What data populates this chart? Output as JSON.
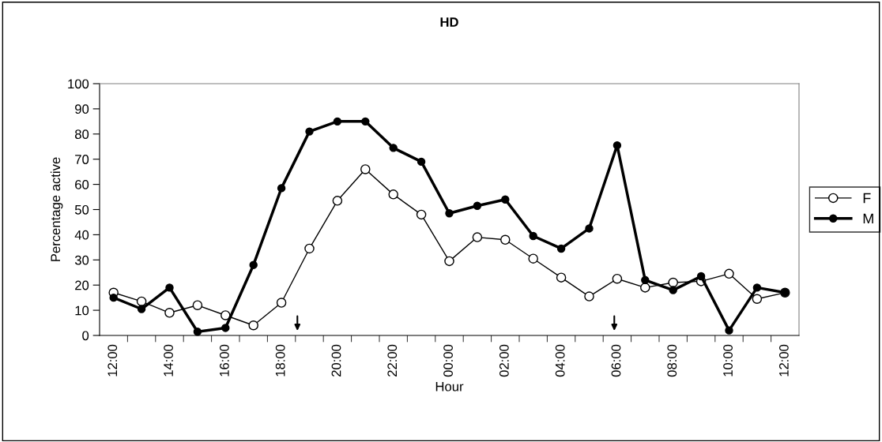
{
  "chart_data": {
    "type": "line",
    "title": "HD",
    "xlabel": "Hour",
    "ylabel": "Percentage active",
    "categories": [
      "12:00",
      null,
      "14:00",
      null,
      "16:00",
      null,
      "18:00",
      null,
      "20:00",
      null,
      "22:00",
      null,
      "00:00",
      null,
      "02:00",
      null,
      "04:00",
      null,
      "06:00",
      null,
      "08:00",
      null,
      "10:00",
      null,
      "12:00"
    ],
    "series": [
      {
        "name": "F",
        "color": "#000000",
        "values": [
          17,
          13.5,
          9,
          12,
          8,
          4,
          13,
          34.5,
          53.5,
          66,
          56,
          48,
          29.5,
          39,
          38,
          30.5,
          23,
          15.5,
          22.5,
          19,
          21,
          21.5,
          24.5,
          14.5,
          17
        ]
      },
      {
        "name": "M",
        "color": "#000000",
        "values": [
          15,
          10.5,
          19,
          1.5,
          3,
          28,
          58.5,
          81,
          85,
          85,
          74.5,
          69,
          48.5,
          51.5,
          54,
          39.5,
          34.5,
          42.5,
          75.5,
          22,
          18,
          23.5,
          2,
          19,
          17
        ]
      }
    ],
    "ylim": [
      0,
      100
    ],
    "yticks": [
      0,
      10,
      20,
      30,
      40,
      50,
      60,
      70,
      80,
      90,
      100
    ],
    "grid": false,
    "legend": "right",
    "marker": "circle",
    "line_style": "solid"
  }
}
